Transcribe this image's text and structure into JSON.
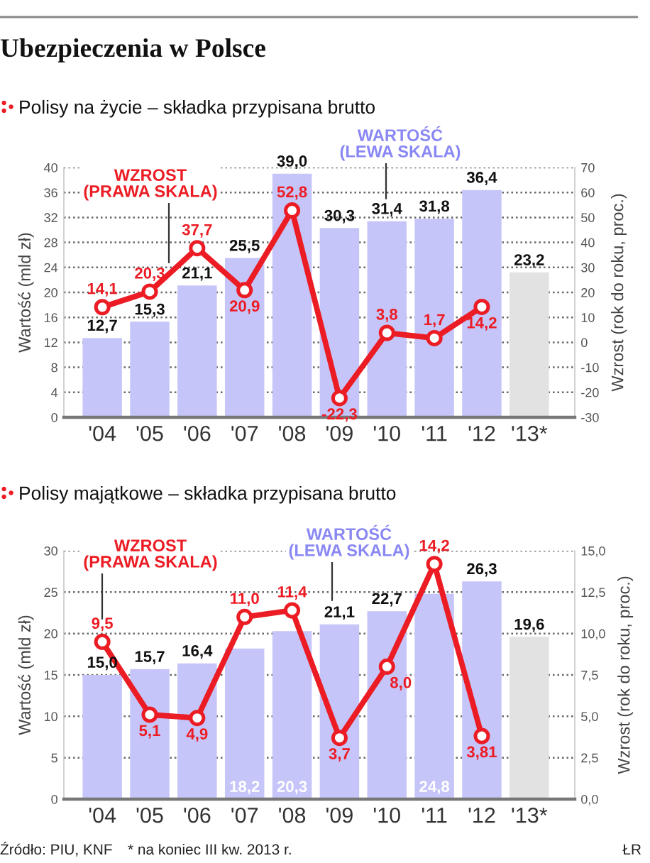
{
  "chart_data": [
    {
      "type": "bar",
      "title": "Ubezpieczenia w Polsce",
      "subtitle": "Polisy na życie – składka przypisana brutto",
      "ylabel": "Wartość (mld zł)",
      "y2label": "Wzrost (rok do roku, proc.)",
      "categories": [
        "'04",
        "'05",
        "'06",
        "'07",
        "'08",
        "'09",
        "'10",
        "'11",
        "'12",
        "'13*"
      ],
      "series": [
        {
          "colors": [
            "#c6c5f9",
            "#c6c5f9",
            "#c6c5f9",
            "#c6c5f9",
            "#c6c5f9",
            "#c6c5f9",
            "#c6c5f9",
            "#c6c5f9",
            "#c6c5f9",
            "#e2e2e2"
          ],
          "values": [
            12.7,
            15.3,
            21.1,
            25.5,
            39.0,
            30.3,
            31.4,
            31.8,
            36.4,
            23.2
          ],
          "value_labels": [
            "12,7",
            "15,3",
            "21,1",
            "25,5",
            "39,0",
            "30,3",
            "31,4",
            "31,8",
            "36,4",
            "23,2"
          ]
        },
        {
          "type": "line",
          "axis": "y2",
          "color": "#ec1c24",
          "values": [
            14.1,
            20.3,
            37.7,
            20.9,
            52.8,
            -22.3,
            3.8,
            1.7,
            14.2,
            null
          ],
          "value_labels": [
            "14,1",
            "20,3",
            "37,7",
            "20,9",
            "52,8",
            "-22,3",
            "3,8",
            "1,7",
            "14,2",
            null
          ]
        }
      ],
      "ylim": [
        0,
        40
      ],
      "yticks": [
        0,
        4,
        8,
        12,
        16,
        20,
        24,
        28,
        32,
        36,
        40
      ],
      "y2lim": [
        -30,
        70
      ],
      "y2ticks": [
        -30,
        -20,
        -10,
        0,
        10,
        20,
        30,
        40,
        50,
        60,
        70
      ],
      "grid": "y",
      "marker": "circle",
      "annotations": [
        "WZROST\n(PRAWA SKALA)",
        "WARTOŚĆ\n(LEWA SKALA)"
      ]
    },
    {
      "type": "bar",
      "subtitle": "Polisy majątkowe – składka przypisana brutto",
      "ylabel": "Wartość (mld zł)",
      "y2label": "Wzrost (rok do roku, proc.)",
      "categories": [
        "'04",
        "'05",
        "'06",
        "'07",
        "'08",
        "'09",
        "'10",
        "'11",
        "'12",
        "'13*"
      ],
      "series": [
        {
          "colors": [
            "#c6c5f9",
            "#c6c5f9",
            "#c6c5f9",
            "#c6c5f9",
            "#c6c5f9",
            "#c6c5f9",
            "#c6c5f9",
            "#c6c5f9",
            "#c6c5f9",
            "#e2e2e2"
          ],
          "values": [
            15.0,
            15.7,
            16.4,
            18.2,
            20.3,
            21.1,
            22.7,
            24.8,
            26.3,
            19.6
          ],
          "value_labels": [
            "15,0",
            "15,7",
            "16,4",
            "18,2",
            "20,3",
            "21,1",
            "22,7",
            "24,8",
            "26,3",
            "19,6"
          ]
        },
        {
          "type": "line",
          "axis": "y2",
          "color": "#ec1c24",
          "values": [
            9.5,
            5.1,
            4.9,
            11.0,
            11.4,
            3.7,
            8.0,
            14.2,
            3.81,
            null
          ],
          "value_labels": [
            "9,5",
            "5,1",
            "4,9",
            "11,0",
            "11,4",
            "3,7",
            "8,0",
            "14,2",
            "3,81",
            null
          ]
        }
      ],
      "ylim": [
        0,
        30
      ],
      "yticks": [
        0,
        5,
        10,
        15,
        20,
        25,
        30
      ],
      "y2lim": [
        0,
        15
      ],
      "y2ticks": [
        {
          "value": 0,
          "label": "0,0"
        },
        {
          "value": 2.5,
          "label": "2,5"
        },
        {
          "value": 5,
          "label": "5,0"
        },
        {
          "value": 7.5,
          "label": "7,5"
        },
        {
          "value": 10,
          "label": "10,0"
        },
        {
          "value": 12.5,
          "label": "12,5"
        },
        {
          "value": 15,
          "label": "15,0"
        }
      ],
      "grid": "y",
      "marker": "circle",
      "annotations": [
        "WZROST\n(PRAWA SKALA)",
        "WARTOŚĆ\n(LEWA SKALA)",
        "Źródło: PIU, KNF",
        "* na koniec III kw. 2013 r.",
        "ŁR"
      ]
    }
  ]
}
